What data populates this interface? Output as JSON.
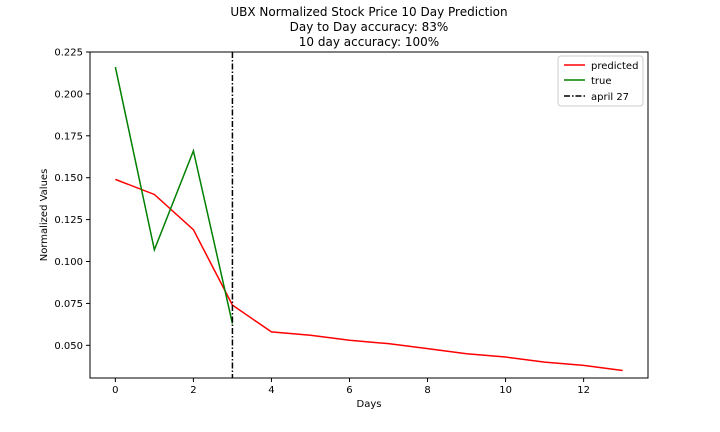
{
  "chart_data": {
    "type": "line",
    "title_lines": [
      "UBX Normalized Stock Price 10 Day Prediction",
      "Day to Day accuracy: 83%",
      "10 day accuracy: 100%"
    ],
    "xlabel": "Days",
    "ylabel": "Normalized Values",
    "xlim": [
      -0.65,
      13.65
    ],
    "ylim": [
      0.0305,
      0.225
    ],
    "xticks": [
      0,
      2,
      4,
      6,
      8,
      10,
      12
    ],
    "yticks": [
      0.05,
      0.075,
      0.1,
      0.125,
      0.15,
      0.175,
      0.2,
      0.225
    ],
    "ytick_labels": [
      "0.050",
      "0.075",
      "0.100",
      "0.125",
      "0.150",
      "0.175",
      "0.200",
      "0.225"
    ],
    "series": [
      {
        "name": "predicted",
        "color": "#ff0000",
        "x": [
          0,
          1,
          2,
          3,
          4,
          5,
          6,
          7,
          8,
          9,
          10,
          11,
          12,
          13
        ],
        "y": [
          0.149,
          0.14,
          0.119,
          0.074,
          0.058,
          0.056,
          0.053,
          0.051,
          0.048,
          0.045,
          0.043,
          0.04,
          0.038,
          0.035
        ]
      },
      {
        "name": "true",
        "color": "#008000",
        "x": [
          0,
          1,
          2,
          3
        ],
        "y": [
          0.216,
          0.107,
          0.166,
          0.063
        ]
      }
    ],
    "vline": {
      "name": "april 27",
      "x": 3,
      "color": "#000000",
      "style": "dashdot"
    },
    "legend_position": "top-right",
    "grid": false
  }
}
